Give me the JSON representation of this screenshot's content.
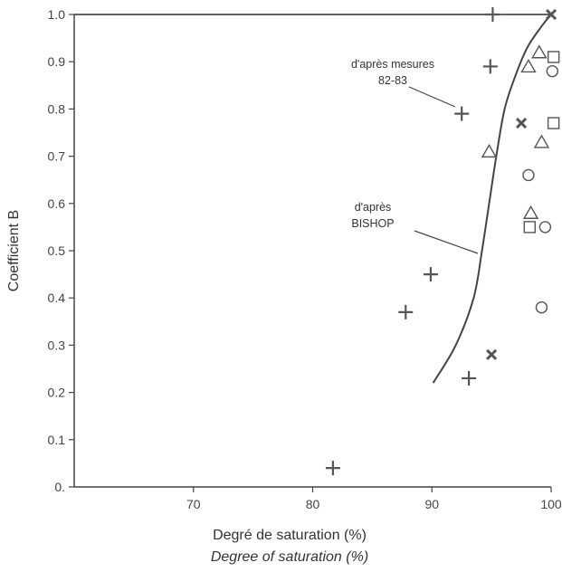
{
  "chart_data": {
    "type": "scatter",
    "title": "",
    "xlabel": "Degré de saturation (%)",
    "xlabel_secondary": "Degree of saturation (%)",
    "ylabel": "Coefficient B",
    "xlim": [
      60,
      100
    ],
    "ylim": [
      0,
      1
    ],
    "x_ticks": [
      "70",
      "80",
      "90",
      "100"
    ],
    "x_tick_values": [
      70,
      80,
      90,
      100
    ],
    "y_ticks": [
      "0.",
      "0.1",
      "0.2",
      "0.3",
      "0.4",
      "0.5",
      "0.6",
      "0.7",
      "0.8",
      "0.9",
      "1.0"
    ],
    "y_tick_values": [
      0,
      0.1,
      0.2,
      0.3,
      0.4,
      0.5,
      0.6,
      0.7,
      0.8,
      0.9,
      1.0
    ],
    "grid": false,
    "series": [
      {
        "marker": "plus",
        "points": [
          [
            81.7,
            0.04
          ],
          [
            87.8,
            0.37
          ],
          [
            89.9,
            0.45
          ],
          [
            93.1,
            0.23
          ],
          [
            92.5,
            0.79
          ],
          [
            94.9,
            0.89
          ],
          [
            95.1,
            1.0
          ]
        ]
      },
      {
        "marker": "x",
        "points": [
          [
            95.0,
            0.28
          ],
          [
            97.5,
            0.77
          ],
          [
            100.0,
            1.0
          ]
        ]
      },
      {
        "marker": "triangle",
        "points": [
          [
            94.8,
            0.71
          ],
          [
            98.1,
            0.89
          ],
          [
            99.0,
            0.92
          ],
          [
            99.2,
            0.73
          ],
          [
            98.3,
            0.58
          ]
        ]
      },
      {
        "marker": "square",
        "points": [
          [
            100.2,
            0.91
          ],
          [
            100.2,
            0.77
          ],
          [
            98.2,
            0.55
          ]
        ]
      },
      {
        "marker": "circle",
        "points": [
          [
            100.1,
            0.88
          ],
          [
            98.1,
            0.66
          ],
          [
            99.5,
            0.55
          ],
          [
            99.2,
            0.38
          ]
        ]
      }
    ],
    "curves": [
      {
        "points": [
          [
            90.1,
            0.22
          ],
          [
            92.0,
            0.3
          ],
          [
            93.5,
            0.4
          ],
          [
            94.2,
            0.5
          ],
          [
            94.8,
            0.6
          ],
          [
            95.4,
            0.7
          ],
          [
            96.1,
            0.8
          ],
          [
            97.0,
            0.87
          ],
          [
            98.0,
            0.93
          ],
          [
            99.2,
            0.975
          ],
          [
            100.0,
            1.0
          ]
        ]
      }
    ],
    "top_line": {
      "points": [
        [
          60,
          1.0
        ],
        [
          100,
          1.0
        ]
      ]
    },
    "annotations": [
      {
        "lines": [
          "d'après mesures",
          "82-83"
        ],
        "points_to": [
          92.5,
          0.79
        ]
      },
      {
        "lines": [
          "d'après",
          "BISHOP"
        ],
        "points_to": [
          94.0,
          0.5
        ]
      }
    ]
  }
}
